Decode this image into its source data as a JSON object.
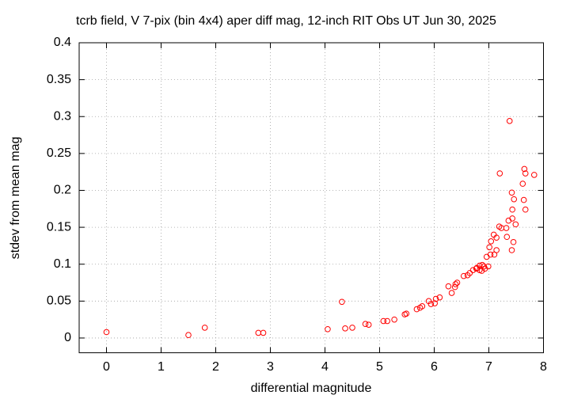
{
  "chart_data": {
    "type": "scatter",
    "title": "tcrb field, V 7-pix (bin 4x4) aper diff mag,  12-inch RIT Obs UT Jun 30, 2025",
    "x_label": "differential magnitude",
    "y_label": "stdev from mean mag",
    "color": "#ff0000",
    "grid": true,
    "xlim": [
      -0.5,
      8
    ],
    "ylim": [
      -0.02,
      0.4
    ],
    "xticks": [
      0,
      1,
      2,
      3,
      4,
      5,
      6,
      7,
      8
    ],
    "yticks": [
      0,
      0.05,
      0.1,
      0.15,
      0.2,
      0.25,
      0.3,
      0.35,
      0.4
    ],
    "x": [
      0,
      1.5,
      1.8,
      2.78,
      2.87,
      4.05,
      4.31,
      4.37,
      4.5,
      4.74,
      4.8,
      5.07,
      5.14,
      5.27,
      5.46,
      5.49,
      5.68,
      5.74,
      5.78,
      5.9,
      5.94,
      6.01,
      6.03,
      6.1,
      6.26,
      6.32,
      6.38,
      6.39,
      6.42,
      6.54,
      6.61,
      6.65,
      6.71,
      6.77,
      6.83,
      6.87,
      6.93,
      6.99,
      6.91,
      6.88,
      6.83,
      6.78,
      6.96,
      7.03,
      7.1,
      7.01,
      7.04,
      7.14,
      7.14,
      7.09,
      7.19,
      7.23,
      7.33,
      7.32,
      7.36,
      7.42,
      7.43,
      7.45,
      7.49,
      7.43,
      7.42,
      7.46,
      7.2,
      7.38,
      7.62,
      7.64,
      7.67,
      7.67,
      7.65,
      7.83
    ],
    "values": [
      0.008,
      0.004,
      0.014,
      0.007,
      0.007,
      0.012,
      0.049,
      0.013,
      0.014,
      0.019,
      0.018,
      0.023,
      0.023,
      0.025,
      0.032,
      0.033,
      0.039,
      0.041,
      0.043,
      0.05,
      0.046,
      0.047,
      0.053,
      0.055,
      0.07,
      0.061,
      0.069,
      0.073,
      0.075,
      0.084,
      0.085,
      0.088,
      0.092,
      0.094,
      0.092,
      0.091,
      0.094,
      0.097,
      0.097,
      0.099,
      0.098,
      0.095,
      0.11,
      0.113,
      0.113,
      0.123,
      0.131,
      0.119,
      0.136,
      0.14,
      0.151,
      0.149,
      0.137,
      0.149,
      0.159,
      0.119,
      0.162,
      0.13,
      0.154,
      0.174,
      0.197,
      0.188,
      0.223,
      0.294,
      0.209,
      0.187,
      0.174,
      0.223,
      0.229,
      0.221
    ]
  }
}
